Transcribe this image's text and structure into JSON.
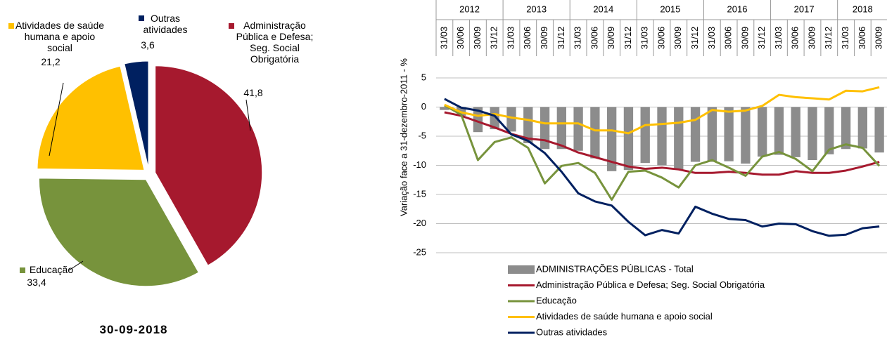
{
  "chart_data": [
    {
      "type": "pie",
      "caption": "30-09-2018",
      "labels": [
        "Administração Pública e Defesa; Seg. Social Obrigatória",
        "Educação",
        "Atividades de saúde humana e apoio social",
        "Outras atividades"
      ],
      "values": [
        41.8,
        33.4,
        21.2,
        3.6
      ],
      "value_labels": [
        "41,8",
        "33,4",
        "21,2",
        "3,6"
      ],
      "colors": [
        "#a6192e",
        "#77933c",
        "#ffc000",
        "#002060"
      ]
    },
    {
      "type": "bar_line",
      "ylabel": "Variação face a 31-dezembro-2011 - %",
      "year_labels": [
        "2012",
        "2013",
        "2014",
        "2015",
        "2016",
        "2017",
        "2018"
      ],
      "categories": [
        "31/03",
        "30/06",
        "30/09",
        "31/12",
        "31/03",
        "30/06",
        "30/09",
        "31/12",
        "31/03",
        "30/06",
        "30/09",
        "31/12",
        "31/03",
        "30/06",
        "30/09",
        "31/12",
        "31/03",
        "30/06",
        "30/09",
        "31/12",
        "31/03",
        "30/06",
        "30/09",
        "31/12",
        "31/03",
        "30/06",
        "30/09"
      ],
      "ylim": [
        -25,
        5
      ],
      "yticks": [
        -25,
        -20,
        -15,
        -10,
        -5,
        0,
        5
      ],
      "grid": true,
      "series": [
        {
          "name": "ADMINISTRAÇÕES PÚBLICAS - Total",
          "kind": "bar",
          "color": "#8c8c8c",
          "values": [
            -0.5,
            -1.5,
            -4.3,
            -3.8,
            -4.2,
            -6.2,
            -7.2,
            -7.2,
            -7.5,
            -8.8,
            -11.0,
            -10.8,
            -9.6,
            -10.0,
            -10.7,
            -9.4,
            -9.4,
            -9.3,
            -9.7,
            -8.5,
            -8.2,
            -8.6,
            -9.1,
            -8.1,
            -7.2,
            -7.1,
            -7.8
          ]
        },
        {
          "name": "Administração Pública e Defesa; Seg. Social Obrigatória",
          "kind": "line",
          "color": "#a6192e",
          "values": [
            -0.9,
            -1.5,
            -2.5,
            -3.5,
            -4.6,
            -5.4,
            -5.7,
            -6.6,
            -7.8,
            -8.6,
            -9.4,
            -10.2,
            -10.6,
            -10.4,
            -10.7,
            -11.3,
            -11.3,
            -11.1,
            -11.3,
            -11.6,
            -11.6,
            -11.0,
            -11.3,
            -11.3,
            -10.9,
            -10.2,
            -9.4
          ]
        },
        {
          "name": "Educação",
          "kind": "line",
          "color": "#77933c",
          "values": [
            0.3,
            -1.3,
            -9.1,
            -6.0,
            -5.2,
            -7.0,
            -13.1,
            -10.1,
            -9.6,
            -11.3,
            -15.9,
            -11.1,
            -10.9,
            -12.1,
            -13.8,
            -10.0,
            -9.1,
            -10.4,
            -11.8,
            -8.5,
            -7.7,
            -8.9,
            -11.0,
            -7.3,
            -6.4,
            -7.0,
            -10.1
          ]
        },
        {
          "name": "Atividades de saúde humana e apoio social",
          "kind": "line",
          "color": "#ffc000",
          "values": [
            0.4,
            -0.9,
            -1.5,
            -1.2,
            -1.8,
            -2.2,
            -2.8,
            -2.8,
            -2.8,
            -4.0,
            -4.0,
            -4.5,
            -3.1,
            -2.9,
            -2.7,
            -2.2,
            -0.5,
            -0.8,
            -0.6,
            0.2,
            2.1,
            1.7,
            1.5,
            1.3,
            2.8,
            2.7,
            3.4
          ]
        },
        {
          "name": "Outras atividades",
          "kind": "line",
          "color": "#002060",
          "values": [
            1.4,
            -0.1,
            -0.6,
            -1.5,
            -4.7,
            -5.8,
            -7.9,
            -11.1,
            -14.8,
            -16.2,
            -16.9,
            -19.7,
            -22.0,
            -21.1,
            -21.7,
            -17.1,
            -18.3,
            -19.2,
            -19.4,
            -20.5,
            -20.0,
            -20.1,
            -21.3,
            -22.1,
            -21.9,
            -20.8,
            -20.5
          ]
        }
      ]
    }
  ]
}
